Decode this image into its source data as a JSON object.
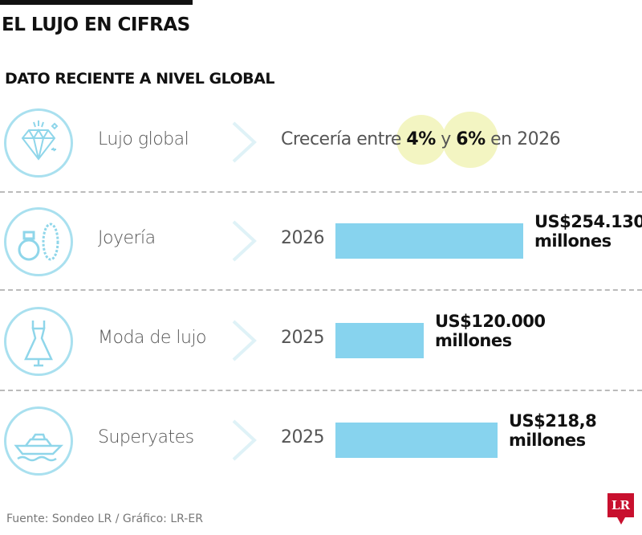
{
  "header": {
    "title": "EL LUJO EN CIFRAS",
    "subtitle": "DATO RECIENTE A NIVEL GLOBAL"
  },
  "colors": {
    "bar": "#87d3ee",
    "icon": "#a9e0ef",
    "highlight": "#f3f5c2",
    "logo": "#c8102e"
  },
  "rows": [
    {
      "label": "Lujo global",
      "icon": "diamond-icon",
      "growth": {
        "pre": "Crecería entre ",
        "low": "4%",
        "mid": " y ",
        "high": "6%",
        "post": " en 2026"
      }
    },
    {
      "label": "Joyería",
      "icon": "ring-bracelet-icon",
      "year": "2026",
      "value_line1": "US$254.130",
      "value_line2": "millones"
    },
    {
      "label": "Moda de lujo",
      "icon": "dress-icon",
      "year": "2025",
      "value_line1": "US$120.000",
      "value_line2": "millones"
    },
    {
      "label": "Superyates",
      "icon": "yacht-icon",
      "year": "2025",
      "value_line1": "US$218,8",
      "value_line2": "millones"
    }
  ],
  "footer": {
    "source": "Fuente: Sondeo LR  / Gráfico: LR-ER",
    "logo": "LR"
  }
}
